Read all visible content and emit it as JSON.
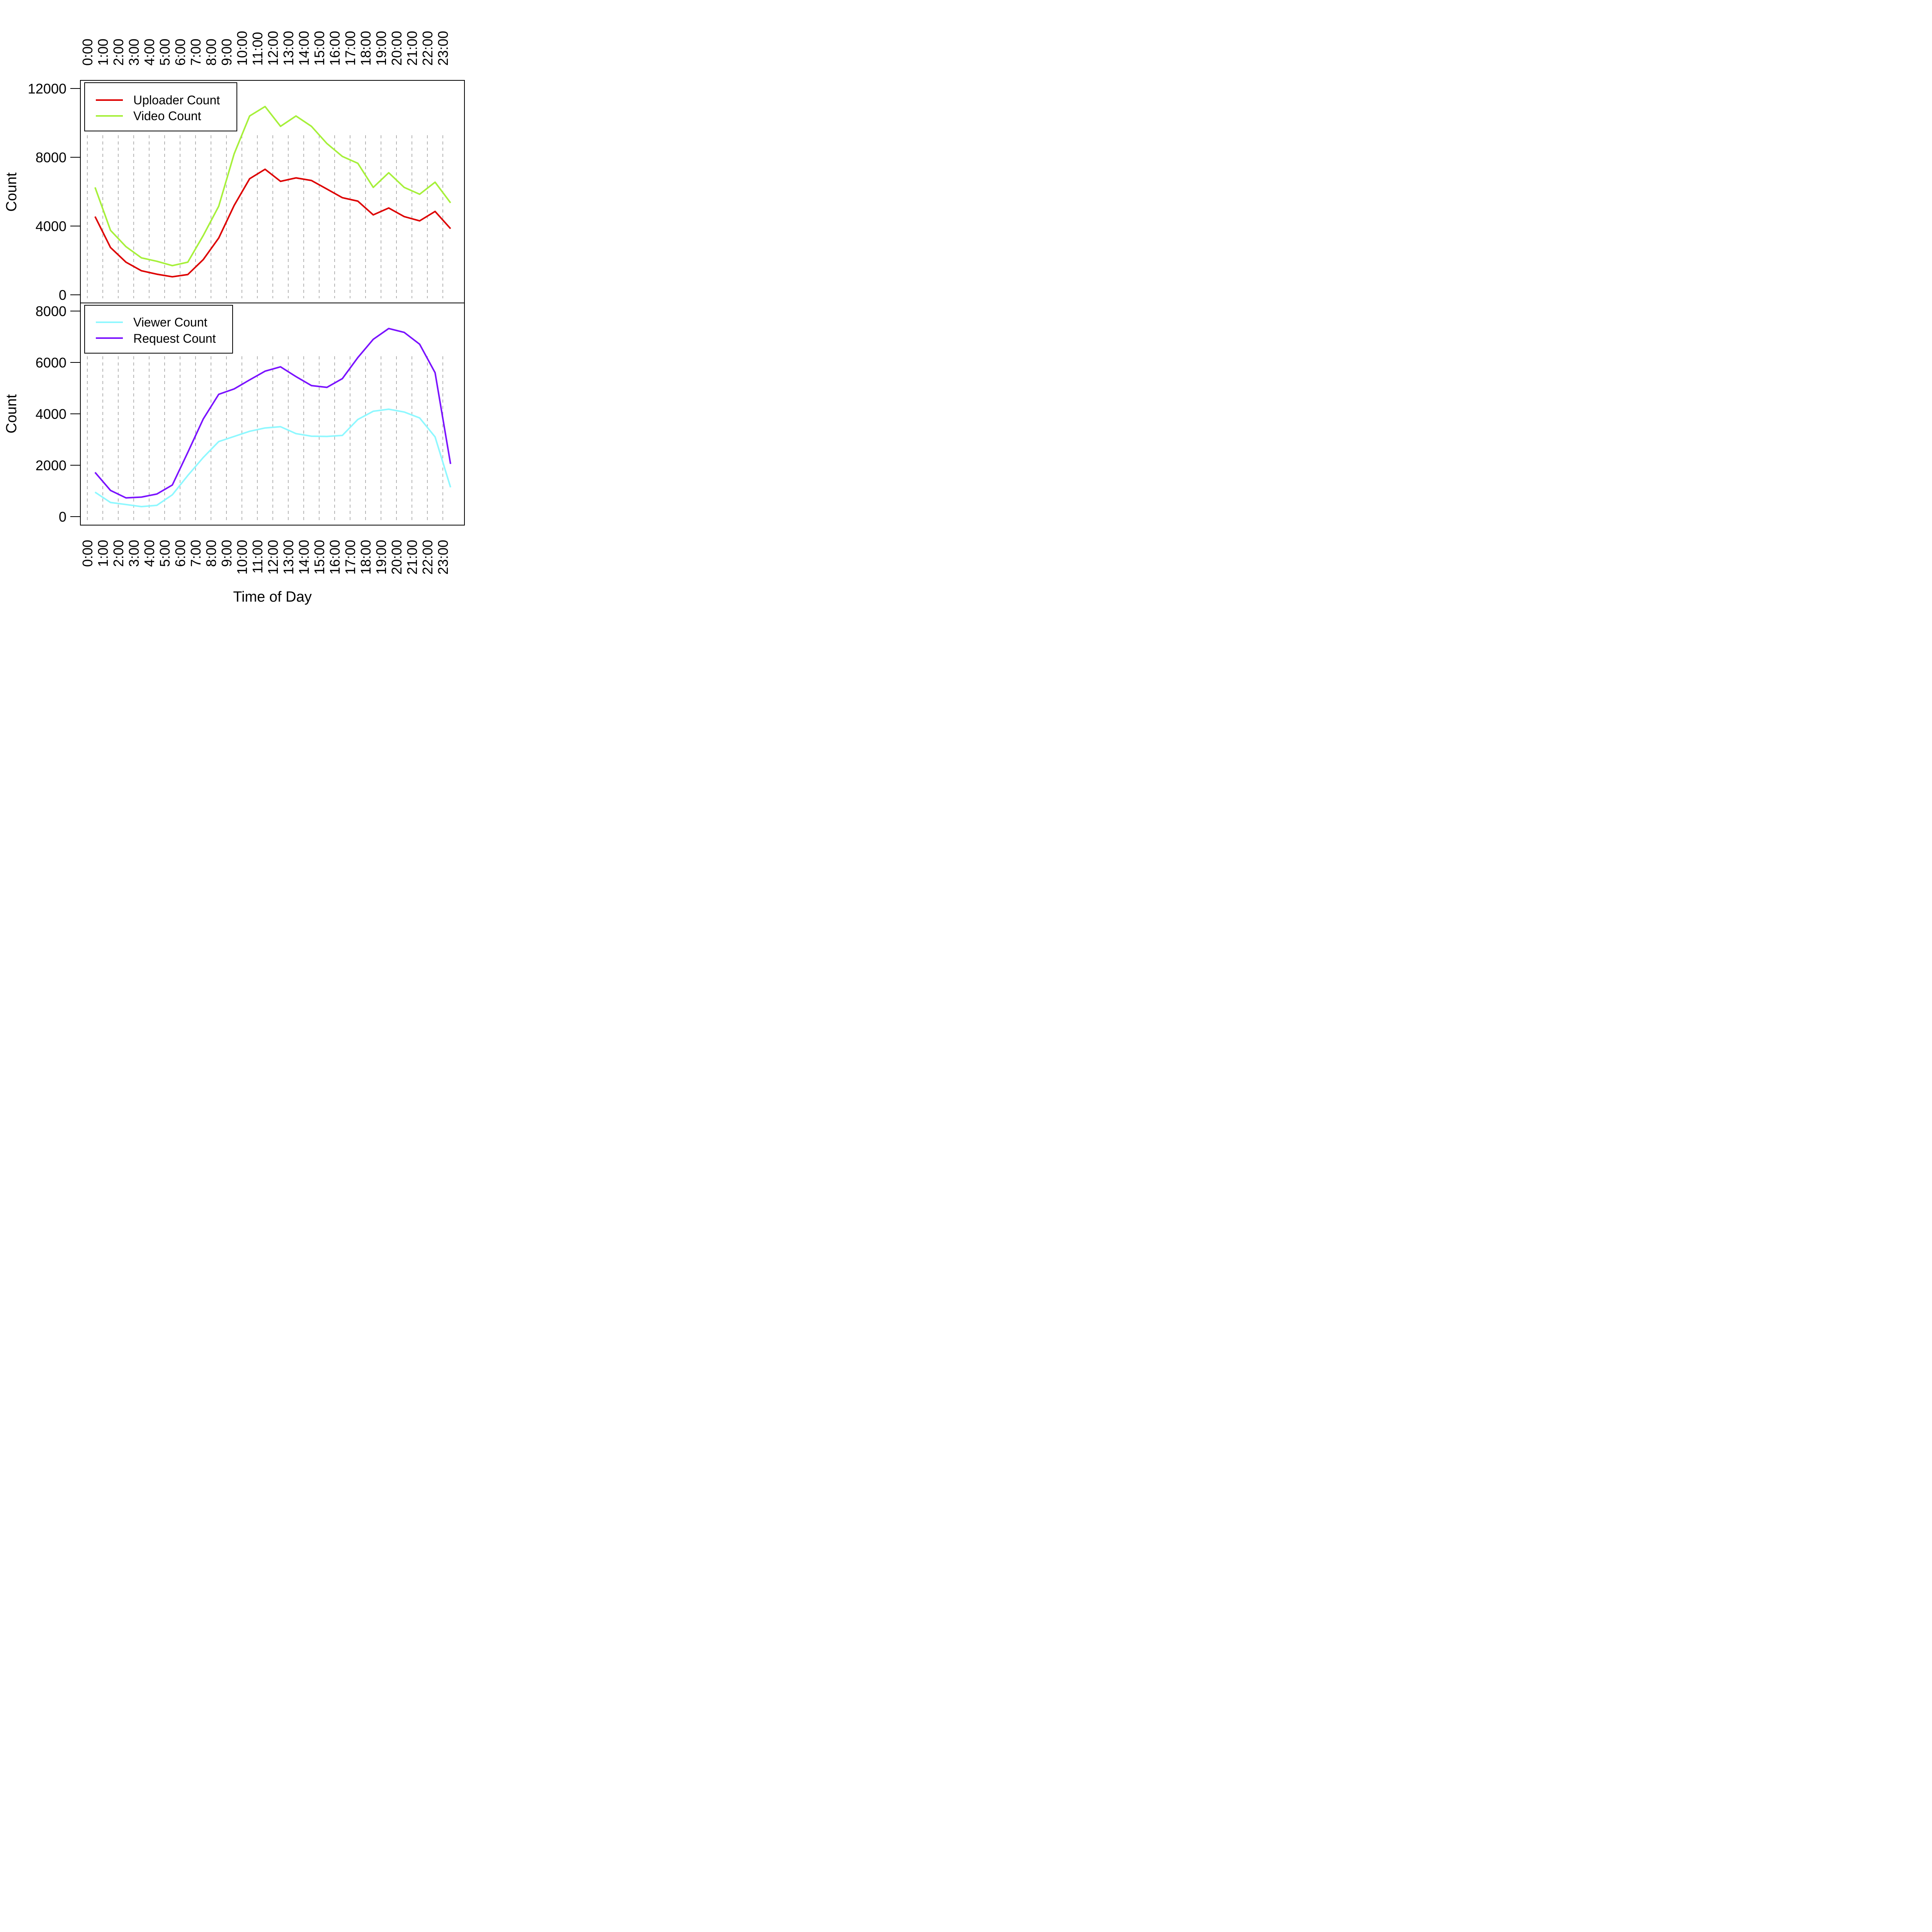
{
  "chart_data": [
    {
      "type": "line",
      "title": "",
      "xlabel": "",
      "ylabel": "Count",
      "ylim": [
        0,
        12000
      ],
      "yticks": [
        "0",
        "4000",
        "8000",
        "12000"
      ],
      "grid": "vertical-dashed",
      "legend": "top-left",
      "x": [
        0.5,
        1.5,
        2.5,
        3.5,
        4.5,
        5.5,
        6.5,
        7.5,
        8.5,
        9.5,
        10.5,
        11.5,
        12.5,
        13.5,
        14.5,
        15.5,
        16.5,
        17.5,
        18.5,
        19.5,
        20.5,
        21.5,
        22.5,
        23.5
      ],
      "series": [
        {
          "name": "Uploader Count",
          "color": "#dd0000",
          "values": [
            4550,
            2750,
            1900,
            1400,
            1200,
            1050,
            1180,
            2050,
            3300,
            5200,
            6750,
            7300,
            6600,
            6800,
            6650,
            6150,
            5650,
            5450,
            4650,
            5050,
            4550,
            4300,
            4850,
            3850
          ]
        },
        {
          "name": "Video Count",
          "color": "#a6f03a",
          "values": [
            6250,
            3750,
            2800,
            2150,
            1950,
            1700,
            1900,
            3450,
            5150,
            8200,
            10400,
            10950,
            9800,
            10400,
            9800,
            8800,
            8050,
            7650,
            6250,
            7100,
            6250,
            5850,
            6550,
            5350
          ]
        }
      ]
    },
    {
      "type": "line",
      "title": "",
      "xlabel": "Time of Day",
      "ylabel": "Count",
      "ylim": [
        0,
        8000
      ],
      "yticks": [
        "0",
        "2000",
        "4000",
        "6000",
        "8000"
      ],
      "grid": "vertical-dashed",
      "legend": "top-left",
      "x": [
        0.5,
        1.5,
        2.5,
        3.5,
        4.5,
        5.5,
        6.5,
        7.5,
        8.5,
        9.5,
        10.5,
        11.5,
        12.5,
        13.5,
        14.5,
        15.5,
        16.5,
        17.5,
        18.5,
        19.5,
        20.5,
        21.5,
        22.5,
        23.5
      ],
      "series": [
        {
          "name": "Viewer Count",
          "color": "#8ef8ff",
          "values": [
            950,
            550,
            470,
            390,
            440,
            850,
            1600,
            2300,
            2920,
            3120,
            3320,
            3450,
            3500,
            3230,
            3130,
            3120,
            3160,
            3780,
            4100,
            4180,
            4070,
            3840,
            3100,
            1140
          ]
        },
        {
          "name": "Request Count",
          "color": "#7a12ff",
          "values": [
            1720,
            1020,
            730,
            760,
            880,
            1230,
            2500,
            3800,
            4760,
            4970,
            5320,
            5660,
            5830,
            5450,
            5100,
            5030,
            5370,
            6190,
            6900,
            7320,
            7170,
            6710,
            5600,
            2050
          ]
        }
      ]
    }
  ],
  "x_axis": {
    "tick_labels": [
      "0:00",
      "1:00",
      "2:00",
      "3:00",
      "4:00",
      "5:00",
      "6:00",
      "7:00",
      "8:00",
      "9:00",
      "10:00",
      "11:00",
      "12:00",
      "13:00",
      "14:00",
      "15:00",
      "16:00",
      "17:00",
      "18:00",
      "19:00",
      "20:00",
      "21:00",
      "22:00",
      "23:00"
    ]
  }
}
